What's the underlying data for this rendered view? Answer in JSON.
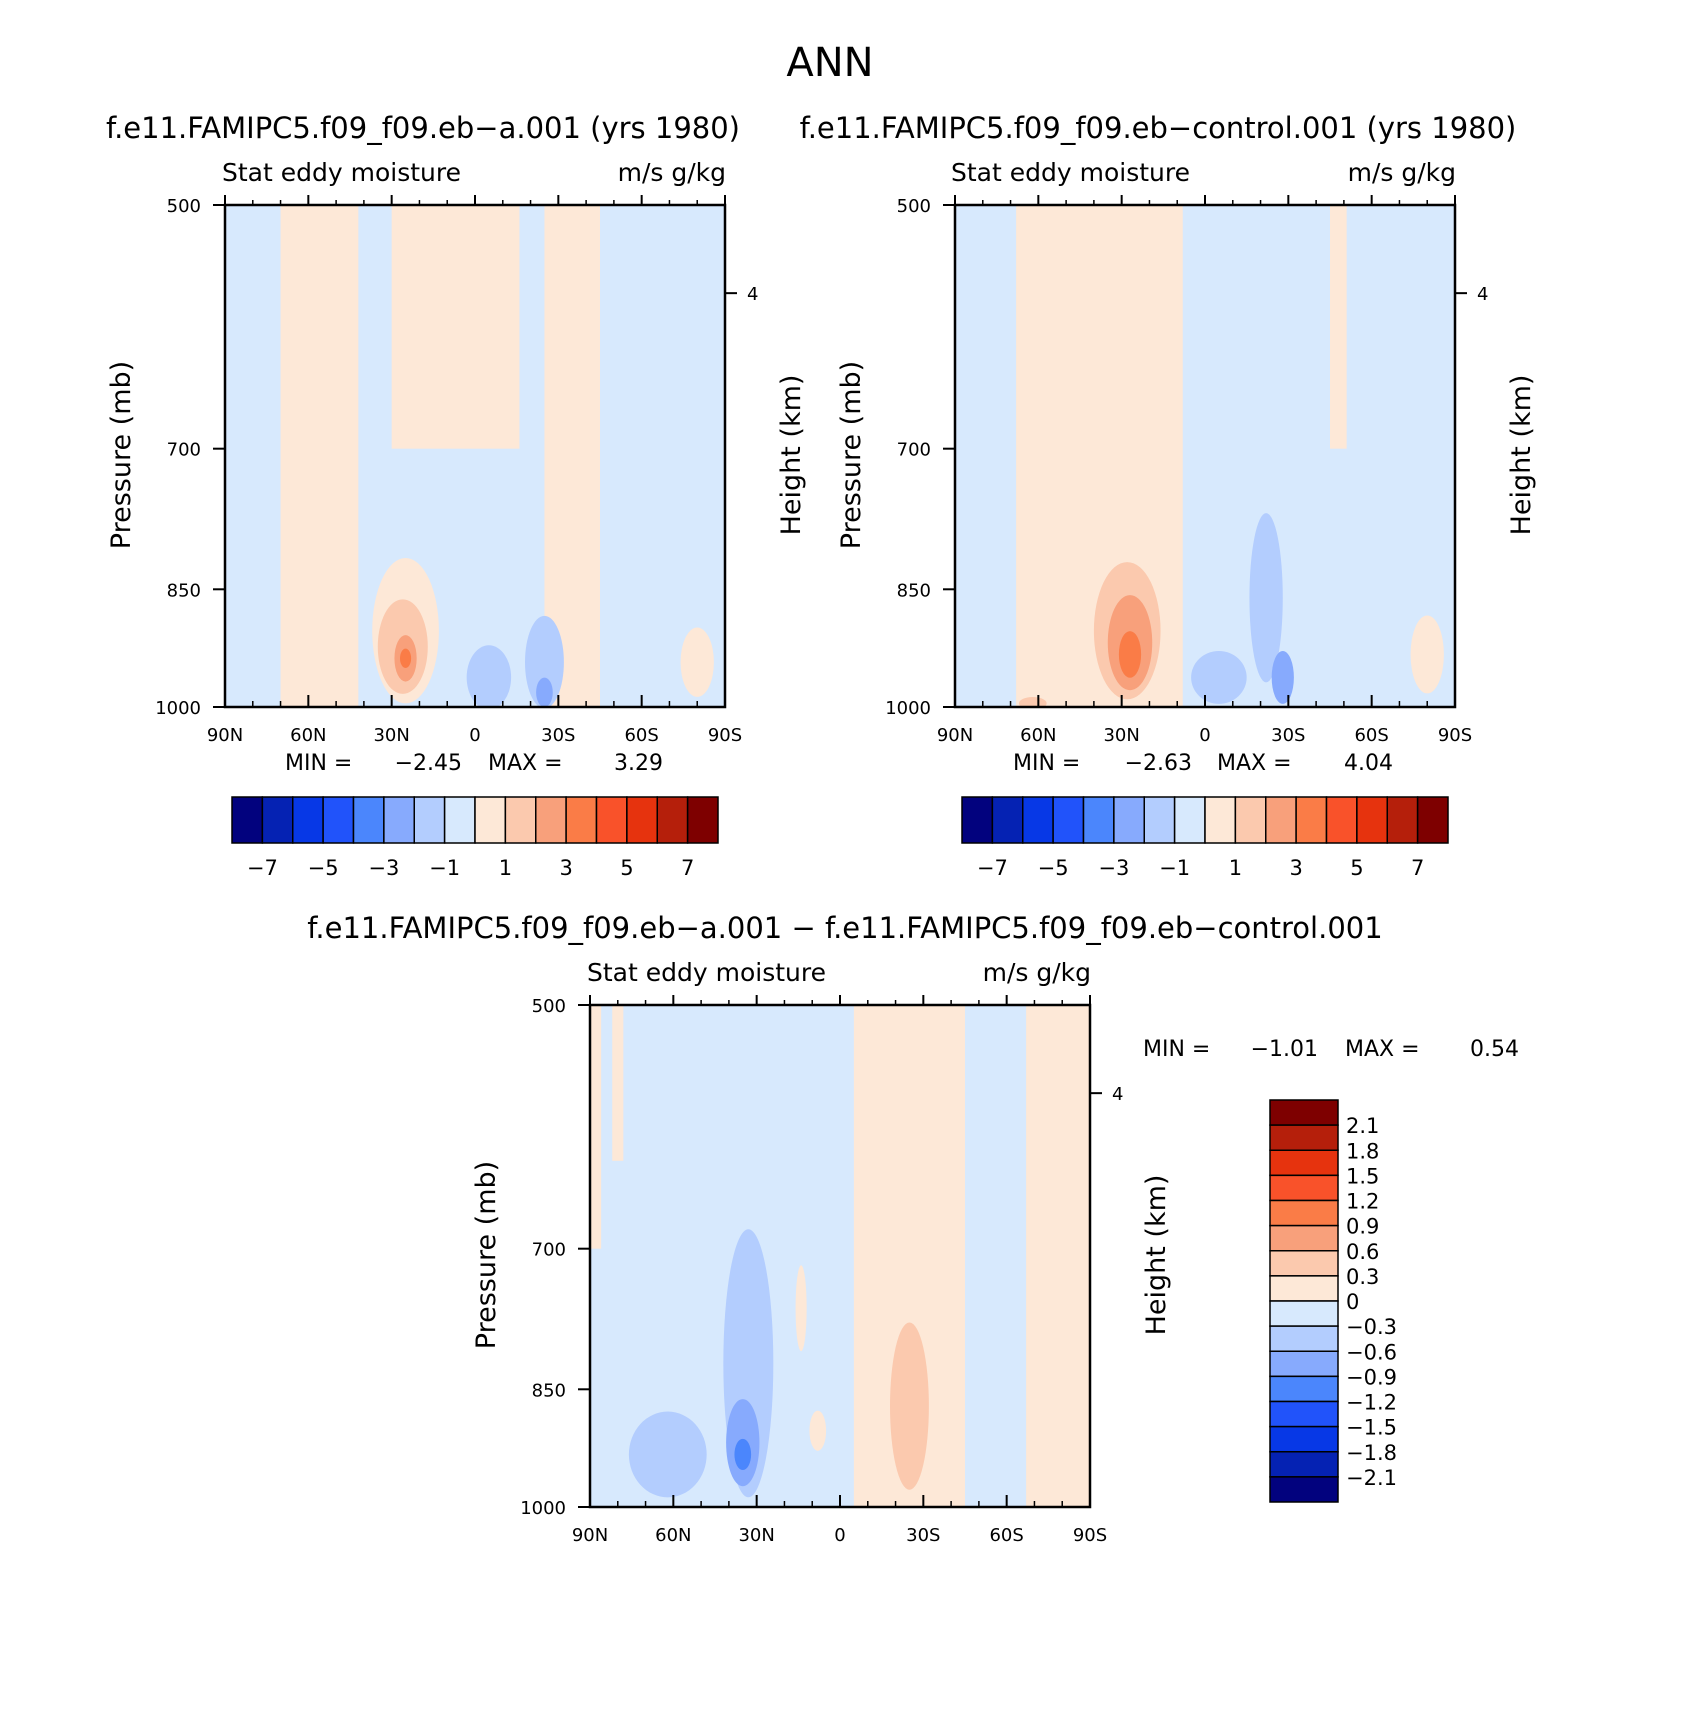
{
  "page_title": "ANN",
  "colors": {
    "pos": [
      "#fde8d7",
      "#fbc9ae",
      "#f8a07b",
      "#fa7c47",
      "#f9522a",
      "#e6330e",
      "#b51f0b",
      "#7e0000"
    ],
    "neg": [
      "#d7e9fd",
      "#b3cdfe",
      "#87aafd",
      "#4b86fc",
      "#2153fa",
      "#0738e6",
      "#0522b3",
      "#02027e"
    ],
    "frame": "#000000"
  },
  "chart_data": [
    {
      "type": "contour",
      "title": "f.e11.FAMIPC5.f09_f09.eb−a.001 (yrs 1980)",
      "label_left": "Stat eddy moisture",
      "label_right": "m/s g/kg",
      "ylabel": "Pressure (mb)",
      "ylabel_right": "Height (km)",
      "y_scale": "log",
      "ylim": [
        500,
        1000
      ],
      "y_ticks": [
        500,
        700,
        850,
        1000
      ],
      "y_tick_labels": [
        "500",
        "700",
        "850",
        "1000"
      ],
      "height_ticks": [
        4
      ],
      "height_tick_labels": [
        "4"
      ],
      "x_ticks": [
        90,
        60,
        30,
        0,
        -30,
        -60,
        -90
      ],
      "x_tick_labels": [
        "90N",
        "60N",
        "30N",
        "0",
        "30S",
        "60S",
        "90S"
      ],
      "min_label": "MIN =",
      "min_value": "−2.45",
      "max_label": "MAX =",
      "max_value": "3.29",
      "colorbar": {
        "orientation": "horizontal",
        "levels": [
          -7,
          -6,
          -5,
          -4,
          -3,
          -2,
          -1,
          0,
          1,
          2,
          3,
          4,
          5,
          6,
          7
        ],
        "tick_labels": [
          "−7",
          "−5",
          "−3",
          "−1",
          "1",
          "3",
          "5",
          "7"
        ]
      },
      "features": [
        {
          "kind": "band",
          "lat": [
            70,
            42
          ],
          "p": [
            500,
            1000
          ],
          "sign": 1,
          "level": 1
        },
        {
          "kind": "band",
          "lat": [
            30,
            -16
          ],
          "p": [
            500,
            700
          ],
          "sign": 1,
          "level": 1
        },
        {
          "kind": "band",
          "lat": [
            -25,
            -45
          ],
          "p": [
            500,
            1000
          ],
          "sign": 1,
          "level": 1
        },
        {
          "kind": "blob",
          "lat": 25,
          "p": 900,
          "dlat": 12,
          "dp": 180,
          "sign": 1,
          "level": 1
        },
        {
          "kind": "blob",
          "lat": 26,
          "p": 920,
          "dlat": 9,
          "dp": 120,
          "sign": 1,
          "level": 2
        },
        {
          "kind": "blob",
          "lat": 25,
          "p": 935,
          "dlat": 4,
          "dp": 60,
          "sign": 1,
          "level": 3
        },
        {
          "kind": "blob",
          "lat": 25,
          "p": 935,
          "dlat": 2,
          "dp": 25,
          "sign": 1,
          "level": 4
        },
        {
          "kind": "blob",
          "lat": -5,
          "p": 960,
          "dlat": 8,
          "dp": 90,
          "sign": -1,
          "level": 2
        },
        {
          "kind": "blob",
          "lat": -25,
          "p": 940,
          "dlat": 7,
          "dp": 120,
          "sign": -1,
          "level": 2
        },
        {
          "kind": "blob",
          "lat": -25,
          "p": 980,
          "dlat": 3,
          "dp": 40,
          "sign": -1,
          "level": 3
        },
        {
          "kind": "blob",
          "lat": -80,
          "p": 940,
          "dlat": 6,
          "dp": 90,
          "sign": 1,
          "level": 1
        }
      ]
    },
    {
      "type": "contour",
      "title": "f.e11.FAMIPC5.f09_f09.eb−control.001 (yrs 1980)",
      "label_left": "Stat eddy moisture",
      "label_right": "m/s g/kg",
      "ylabel": "Pressure (mb)",
      "ylabel_right": "Height (km)",
      "y_scale": "log",
      "ylim": [
        500,
        1000
      ],
      "y_ticks": [
        500,
        700,
        850,
        1000
      ],
      "y_tick_labels": [
        "500",
        "700",
        "850",
        "1000"
      ],
      "height_ticks": [
        4
      ],
      "height_tick_labels": [
        "4"
      ],
      "x_ticks": [
        90,
        60,
        30,
        0,
        -30,
        -60,
        -90
      ],
      "x_tick_labels": [
        "90N",
        "60N",
        "30N",
        "0",
        "30S",
        "60S",
        "90S"
      ],
      "min_label": "MIN =",
      "min_value": "−2.63",
      "max_label": "MAX =",
      "max_value": "4.04",
      "colorbar": {
        "orientation": "horizontal",
        "levels": [
          -7,
          -6,
          -5,
          -4,
          -3,
          -2,
          -1,
          0,
          1,
          2,
          3,
          4,
          5,
          6,
          7
        ],
        "tick_labels": [
          "−7",
          "−5",
          "−3",
          "−1",
          "1",
          "3",
          "5",
          "7"
        ]
      },
      "features": [
        {
          "kind": "band",
          "lat": [
            68,
            8
          ],
          "p": [
            500,
            1000
          ],
          "sign": 1,
          "level": 1
        },
        {
          "kind": "band",
          "lat": [
            -45,
            -51
          ],
          "p": [
            500,
            700
          ],
          "sign": 1,
          "level": 1
        },
        {
          "kind": "blob",
          "lat": 28,
          "p": 890,
          "dlat": 16,
          "dp": 200,
          "sign": 1,
          "level": 1
        },
        {
          "kind": "blob",
          "lat": 28,
          "p": 900,
          "dlat": 12,
          "dp": 170,
          "sign": 1,
          "level": 2
        },
        {
          "kind": "blob",
          "lat": 27,
          "p": 915,
          "dlat": 8,
          "dp": 120,
          "sign": 1,
          "level": 3
        },
        {
          "kind": "blob",
          "lat": 27,
          "p": 930,
          "dlat": 4,
          "dp": 60,
          "sign": 1,
          "level": 4
        },
        {
          "kind": "blob",
          "lat": -22,
          "p": 860,
          "dlat": 6,
          "dp": 200,
          "sign": -1,
          "level": 2
        },
        {
          "kind": "blob",
          "lat": -5,
          "p": 960,
          "dlat": 10,
          "dp": 70,
          "sign": -1,
          "level": 2
        },
        {
          "kind": "blob",
          "lat": -28,
          "p": 960,
          "dlat": 4,
          "dp": 70,
          "sign": -1,
          "level": 3
        },
        {
          "kind": "blob",
          "lat": -80,
          "p": 930,
          "dlat": 6,
          "dp": 100,
          "sign": 1,
          "level": 1
        },
        {
          "kind": "blob",
          "lat": 62,
          "p": 995,
          "dlat": 5,
          "dp": 25,
          "sign": 1,
          "level": 2
        }
      ]
    },
    {
      "type": "contour",
      "title": "f.e11.FAMIPC5.f09_f09.eb−a.001 − f.e11.FAMIPC5.f09_f09.eb−control.001",
      "label_left": "Stat eddy moisture",
      "label_right": "m/s g/kg",
      "ylabel": "Pressure (mb)",
      "ylabel_right": "Height (km)",
      "y_scale": "log",
      "ylim": [
        500,
        1000
      ],
      "y_ticks": [
        500,
        700,
        850,
        1000
      ],
      "y_tick_labels": [
        "500",
        "700",
        "850",
        "1000"
      ],
      "height_ticks": [
        4
      ],
      "height_tick_labels": [
        "4"
      ],
      "x_ticks": [
        90,
        60,
        30,
        0,
        -30,
        -60,
        -90
      ],
      "x_tick_labels": [
        "90N",
        "60N",
        "30N",
        "0",
        "30S",
        "60S",
        "90S"
      ],
      "min_label": "MIN =",
      "min_value": "−1.01",
      "max_label": "MAX =",
      "max_value": "0.54",
      "colorbar": {
        "orientation": "vertical",
        "levels": [
          -2.4,
          -2.1,
          -1.8,
          -1.5,
          -1.2,
          -0.9,
          -0.6,
          -0.3,
          0,
          0.3,
          0.6,
          0.9,
          1.2,
          1.5,
          1.8,
          2.1,
          2.4
        ],
        "tick_labels": [
          "2.1",
          "1.8",
          "1.5",
          "1.2",
          "0.9",
          "0.6",
          "0.3",
          "0",
          "−0.3",
          "−0.6",
          "−0.9",
          "−1.2",
          "−1.5",
          "−1.8",
          "−2.1"
        ]
      },
      "features": [
        {
          "kind": "band",
          "lat": [
            -5,
            -45
          ],
          "p": [
            500,
            1000
          ],
          "sign": 1,
          "level": 1
        },
        {
          "kind": "band",
          "lat": [
            -67,
            -90
          ],
          "p": [
            500,
            1000
          ],
          "sign": 1,
          "level": 1
        },
        {
          "kind": "band",
          "lat": [
            90,
            86
          ],
          "p": [
            500,
            700
          ],
          "sign": 1,
          "level": 1
        },
        {
          "kind": "band",
          "lat": [
            82,
            78
          ],
          "p": [
            500,
            620
          ],
          "sign": 1,
          "level": 1
        },
        {
          "kind": "blob",
          "lat": 62,
          "p": 930,
          "dlat": 14,
          "dp": 110,
          "sign": -1,
          "level": 2
        },
        {
          "kind": "blob",
          "lat": 33,
          "p": 820,
          "dlat": 9,
          "dp": 300,
          "sign": -1,
          "level": 2
        },
        {
          "kind": "blob",
          "lat": 35,
          "p": 915,
          "dlat": 6,
          "dp": 110,
          "sign": -1,
          "level": 3
        },
        {
          "kind": "blob",
          "lat": 35,
          "p": 930,
          "dlat": 3,
          "dp": 40,
          "sign": -1,
          "level": 4
        },
        {
          "kind": "blob",
          "lat": -25,
          "p": 870,
          "dlat": 7,
          "dp": 200,
          "sign": 1,
          "level": 2
        },
        {
          "kind": "blob",
          "lat": 8,
          "p": 900,
          "dlat": 3,
          "dp": 50,
          "sign": 1,
          "level": 1
        },
        {
          "kind": "blob",
          "lat": 14,
          "p": 760,
          "dlat": 2,
          "dp": 90,
          "sign": 1,
          "level": 1
        }
      ]
    }
  ]
}
